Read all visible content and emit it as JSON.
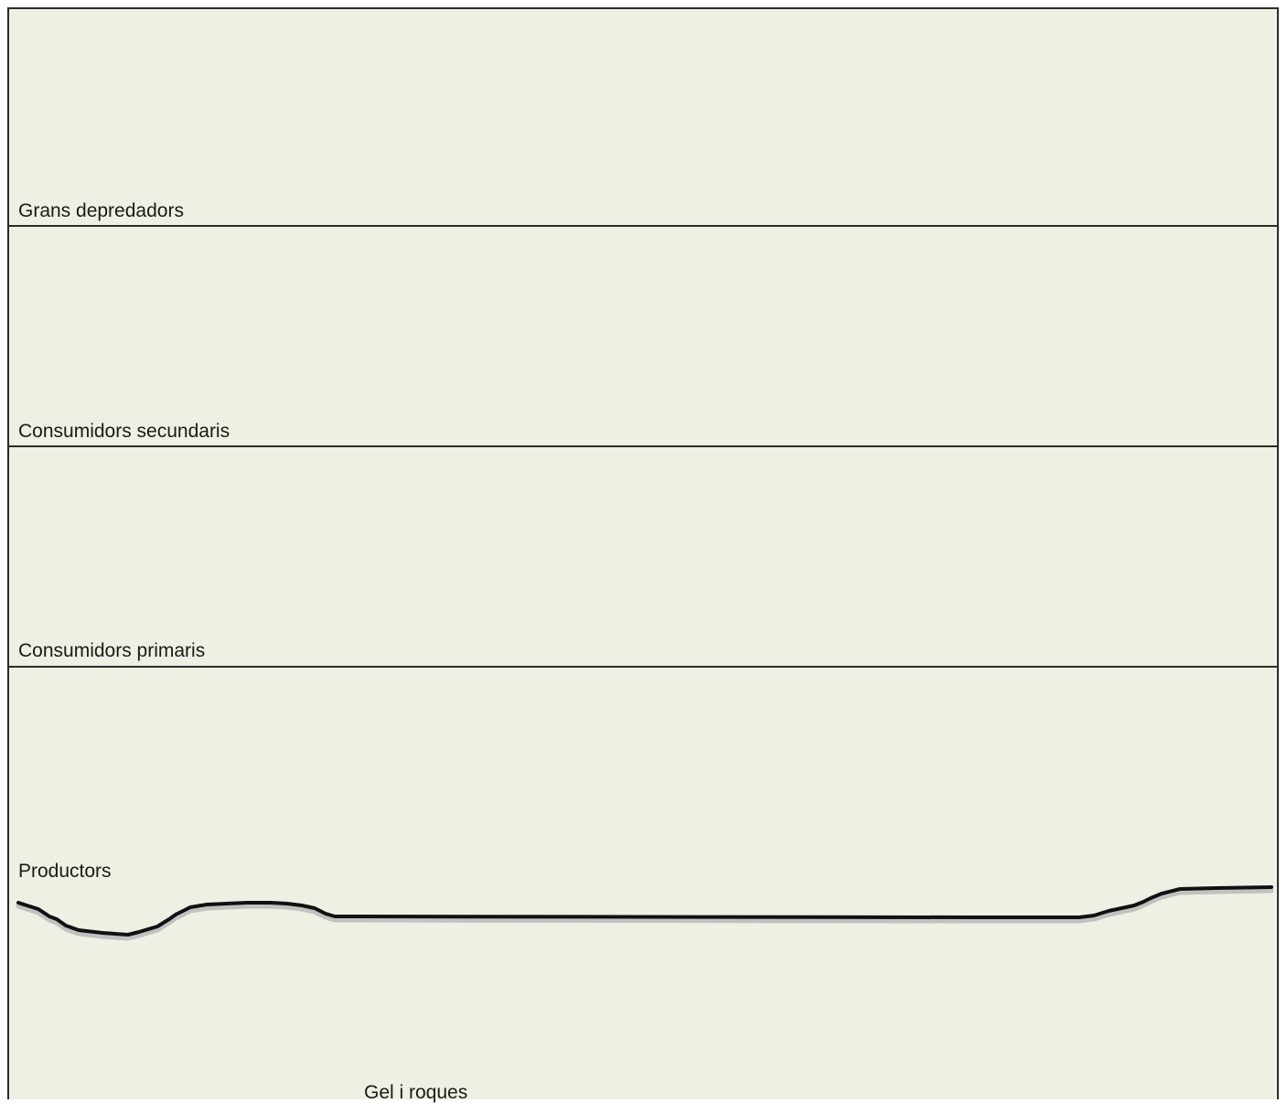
{
  "levels": [
    "Grans depredadors",
    "Consumidors secundaris",
    "Consumidors primaris",
    "Productors"
  ],
  "ground_label": "Gel i roques",
  "colors": {
    "background": "#edf0e3",
    "border": "#2b2b2b",
    "ground_line": "#111111"
  }
}
